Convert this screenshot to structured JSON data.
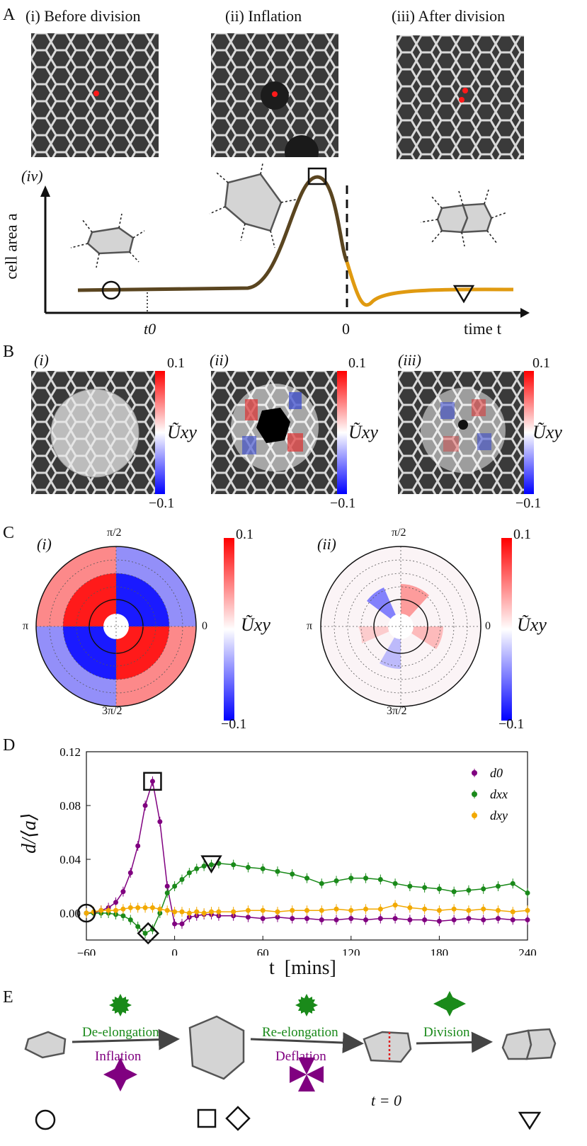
{
  "panels": {
    "A": {
      "label": "A",
      "subtitles": [
        "(i) Before division",
        "(ii) Inflation",
        "(iii) After division"
      ],
      "schematic": {
        "sublabel": "(iv)",
        "ylabel": "cell area a",
        "xlabel": "time t",
        "tick_t0": "t0",
        "tick_zero": "0"
      }
    },
    "B": {
      "label": "B",
      "sublabels": [
        "(i)",
        "(ii)",
        "(iii)"
      ],
      "colorbar": {
        "max": "0.1",
        "min": "−0.1",
        "symbol": "Ũxy"
      }
    },
    "C": {
      "label": "C",
      "sublabels": [
        "(i)",
        "(ii)"
      ],
      "angle_labels": {
        "top": "π/2",
        "left": "π",
        "right": "0",
        "bottom": "3π/2"
      },
      "colorbar": {
        "max": "0.1",
        "min": "−0.1",
        "symbol": "Ũxy"
      }
    },
    "D": {
      "label": "D",
      "ylabel": "d/⟨a⟩",
      "xlabel": "t  [mins]"
    },
    "E": {
      "label": "E",
      "steps": {
        "de_elongation": "De-elongation",
        "inflation": "Inflation",
        "re_elongation": "Re-elongation",
        "deflation": "Deflation",
        "division": "Division",
        "t_zero": "t = 0"
      }
    }
  },
  "colors": {
    "purple": "#800080",
    "green": "#1a8a1a",
    "orange": "#f2a900",
    "schematic_before": "#5a4520",
    "schematic_after": "#e09a10",
    "diverging_red": "#ff0000",
    "diverging_blue": "#0000ff"
  },
  "chart_data": {
    "type": "line",
    "xlabel": "t  [mins]",
    "ylabel": "d/⟨a⟩",
    "xlim": [
      -60,
      240
    ],
    "ylim": [
      -0.02,
      0.12
    ],
    "xticks": [
      -60,
      0,
      60,
      120,
      180,
      240
    ],
    "yticks": [
      "0.00",
      "0.04",
      "0.08",
      "0.12"
    ],
    "legend_position": "top-right",
    "series": [
      {
        "name": "d0",
        "color": "#800080",
        "x": [
          -60,
          -55,
          -50,
          -45,
          -40,
          -35,
          -30,
          -25,
          -20,
          -15,
          -10,
          -5,
          0,
          5,
          10,
          15,
          20,
          25,
          30,
          40,
          50,
          60,
          70,
          80,
          90,
          100,
          110,
          120,
          130,
          140,
          150,
          160,
          170,
          180,
          190,
          200,
          210,
          220,
          230,
          240
        ],
        "y": [
          0.0,
          0.0,
          0.002,
          0.004,
          0.008,
          0.016,
          0.03,
          0.05,
          0.08,
          0.098,
          0.068,
          0.02,
          -0.008,
          -0.008,
          -0.003,
          -0.002,
          -0.001,
          -0.001,
          -0.002,
          -0.002,
          -0.003,
          -0.004,
          -0.003,
          -0.004,
          -0.004,
          -0.005,
          -0.005,
          -0.004,
          -0.005,
          -0.004,
          -0.004,
          -0.005,
          -0.005,
          -0.006,
          -0.005,
          -0.004,
          -0.005,
          -0.004,
          -0.005,
          -0.005
        ]
      },
      {
        "name": "dxx",
        "color": "#1a8a1a",
        "x": [
          -60,
          -55,
          -50,
          -45,
          -40,
          -35,
          -30,
          -25,
          -20,
          -15,
          -10,
          -5,
          0,
          5,
          10,
          15,
          20,
          25,
          30,
          40,
          50,
          60,
          70,
          80,
          90,
          100,
          110,
          120,
          130,
          140,
          150,
          160,
          170,
          180,
          190,
          200,
          210,
          220,
          230,
          240
        ],
        "y": [
          0.0,
          0.0,
          0.0,
          0.0,
          -0.001,
          -0.002,
          -0.005,
          -0.01,
          -0.015,
          -0.012,
          0.0,
          0.015,
          0.02,
          0.025,
          0.03,
          0.033,
          0.035,
          0.036,
          0.037,
          0.036,
          0.034,
          0.033,
          0.031,
          0.029,
          0.026,
          0.022,
          0.024,
          0.026,
          0.026,
          0.025,
          0.022,
          0.02,
          0.019,
          0.018,
          0.016,
          0.017,
          0.018,
          0.02,
          0.022,
          0.015
        ]
      },
      {
        "name": "dxy",
        "color": "#f2a900",
        "x": [
          -60,
          -55,
          -50,
          -45,
          -40,
          -35,
          -30,
          -25,
          -20,
          -15,
          -10,
          -5,
          0,
          5,
          10,
          15,
          20,
          25,
          30,
          40,
          50,
          60,
          70,
          80,
          90,
          100,
          110,
          120,
          130,
          140,
          150,
          160,
          170,
          180,
          190,
          200,
          210,
          220,
          230,
          240
        ],
        "y": [
          0.0,
          0.001,
          0.002,
          0.002,
          0.002,
          0.003,
          0.004,
          0.004,
          0.004,
          0.004,
          0.003,
          0.002,
          0.001,
          0.001,
          0.0,
          0.001,
          0.0,
          0.001,
          0.001,
          0.001,
          0.002,
          0.002,
          0.001,
          0.002,
          0.002,
          0.002,
          0.003,
          0.002,
          0.003,
          0.003,
          0.006,
          0.004,
          0.003,
          0.002,
          0.003,
          0.002,
          0.003,
          0.002,
          0.001,
          0.002
        ]
      }
    ],
    "markers": [
      {
        "shape": "circle",
        "x": -60,
        "y": 0.0
      },
      {
        "shape": "square",
        "x": -15,
        "y": 0.098
      },
      {
        "shape": "diamond",
        "x": -18,
        "y": -0.015
      },
      {
        "shape": "triangle",
        "x": 25,
        "y": 0.036
      }
    ]
  }
}
